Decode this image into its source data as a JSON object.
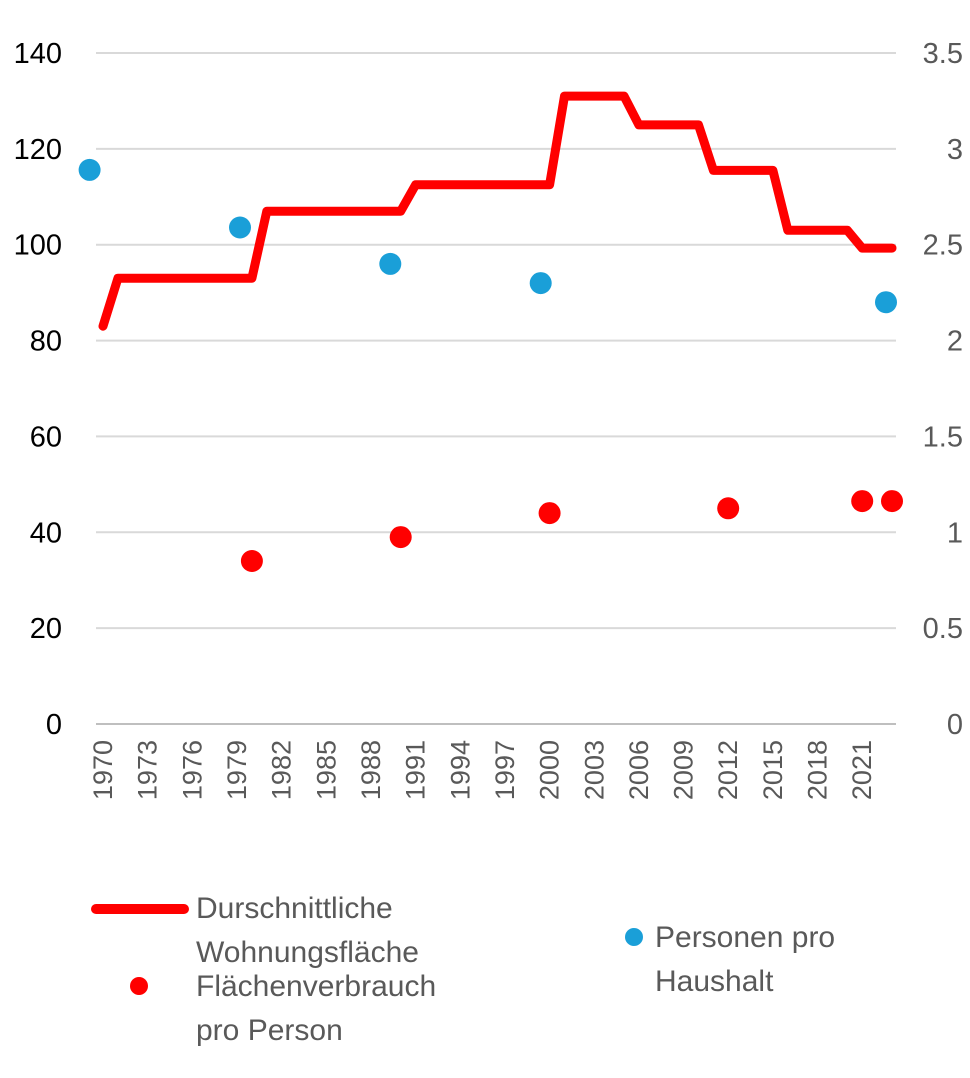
{
  "chart_data": {
    "type": "line",
    "x": [
      1970,
      1971,
      1972,
      1973,
      1974,
      1975,
      1976,
      1977,
      1978,
      1979,
      1980,
      1981,
      1982,
      1983,
      1984,
      1985,
      1986,
      1987,
      1988,
      1989,
      1990,
      1991,
      1992,
      1993,
      1994,
      1995,
      1996,
      1997,
      1998,
      1999,
      2000,
      2001,
      2002,
      2003,
      2004,
      2005,
      2006,
      2007,
      2008,
      2009,
      2010,
      2011,
      2012,
      2013,
      2014,
      2015,
      2016,
      2017,
      2018,
      2019,
      2020,
      2021,
      2022,
      2023
    ],
    "x_tick_labels": [
      "1970",
      "1973",
      "1976",
      "1979",
      "1982",
      "1985",
      "1988",
      "1991",
      "1994",
      "1997",
      "2000",
      "2003",
      "2006",
      "2009",
      "2012",
      "2015",
      "2018",
      "2021"
    ],
    "y_left": {
      "ticks": [
        "0",
        "20",
        "40",
        "60",
        "80",
        "100",
        "120",
        "140"
      ],
      "ylim": [
        0,
        140
      ]
    },
    "y_right": {
      "ticks": [
        "0",
        "0.5",
        "1",
        "1.5",
        "2",
        "2.5",
        "3",
        "3.5"
      ],
      "ylim": [
        0,
        3.5
      ]
    },
    "grid": true,
    "legend_position": "bottom",
    "series": [
      {
        "name": "Durschnittliche Wohnungsfläche",
        "legend_lines": [
          "Durschnittliche",
          "Wohnungsfläche"
        ],
        "kind": "step-line",
        "axis": "left",
        "color": "#ff0000",
        "points": [
          [
            1970,
            83
          ],
          [
            1971,
            93
          ],
          [
            1980,
            93
          ],
          [
            1981,
            107
          ],
          [
            1990,
            107
          ],
          [
            1991,
            112.5
          ],
          [
            2000,
            112.5
          ],
          [
            2001,
            131
          ],
          [
            2005,
            131
          ],
          [
            2006,
            125
          ],
          [
            2010,
            125
          ],
          [
            2011,
            115.5
          ],
          [
            2015,
            115.5
          ],
          [
            2016,
            103
          ],
          [
            2020,
            103
          ],
          [
            2021,
            99.3
          ],
          [
            2023,
            99.3
          ]
        ]
      },
      {
        "name": "Flächenverbrauch pro Person",
        "legend_lines": [
          "Flächenverbrauch",
          "pro Person"
        ],
        "kind": "scatter",
        "axis": "left",
        "color": "#ff0000",
        "points": [
          [
            1980,
            34
          ],
          [
            1990,
            39
          ],
          [
            2000,
            44
          ],
          [
            2012,
            45
          ],
          [
            2021,
            46.5
          ],
          [
            2023,
            46.5
          ]
        ]
      },
      {
        "name": "Personen pro Haushalt",
        "legend_lines": [
          "Personen pro",
          "Haushalt"
        ],
        "kind": "scatter",
        "axis": "right",
        "color": "#1a9fd8",
        "points": [
          [
            1969.1,
            2.89
          ],
          [
            1979.2,
            2.59
          ],
          [
            1989.3,
            2.4
          ],
          [
            1999.4,
            2.3
          ],
          [
            2022.6,
            2.2
          ]
        ]
      }
    ]
  }
}
